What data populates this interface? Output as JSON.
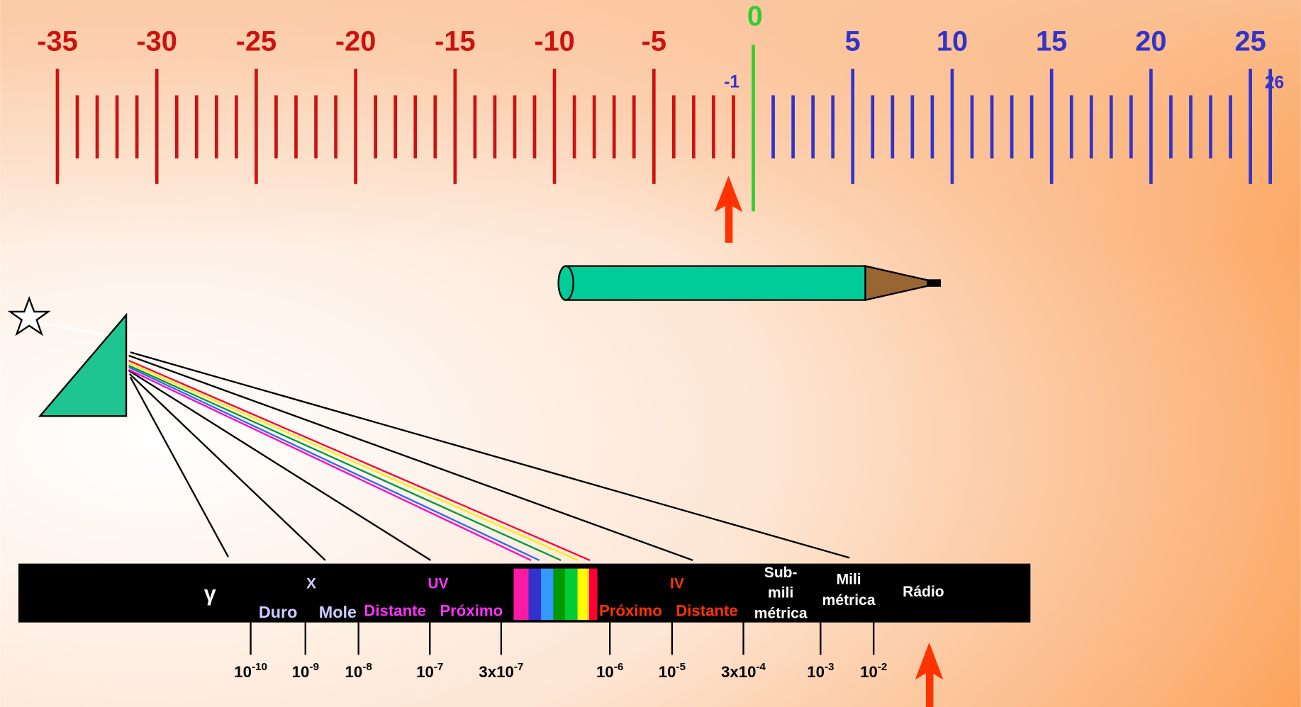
{
  "scale": {
    "labels": [
      -35,
      -30,
      -25,
      -20,
      -15,
      -10,
      -5,
      5,
      10,
      15,
      20,
      25
    ],
    "zero": 0,
    "near_zero": -1,
    "end": 26
  },
  "spectrum": {
    "gamma": "γ",
    "x": {
      "name": "X",
      "hard": "Duro",
      "soft": "Mole"
    },
    "uv": {
      "name": "UV",
      "far": "Distante",
      "near": "Próximo"
    },
    "ir": {
      "name": "IV",
      "near": "Próximo",
      "far": "Distante"
    },
    "submm": [
      "Sub-",
      "mili",
      "métrica"
    ],
    "mm": [
      "Mili",
      "métrica"
    ],
    "radio": "Rádio"
  },
  "wavelengths": [
    {
      "base": "10",
      "exp": "-10"
    },
    {
      "base": "10",
      "exp": "-9"
    },
    {
      "base": "10",
      "exp": "-8"
    },
    {
      "base": "10",
      "exp": "-7"
    },
    {
      "base": "3x10",
      "exp": "-7"
    },
    {
      "base": "10",
      "exp": "-6"
    },
    {
      "base": "10",
      "exp": "-5"
    },
    {
      "base": "3x10",
      "exp": "-4"
    },
    {
      "base": "10",
      "exp": "-3"
    },
    {
      "base": "10",
      "exp": "-2"
    }
  ]
}
